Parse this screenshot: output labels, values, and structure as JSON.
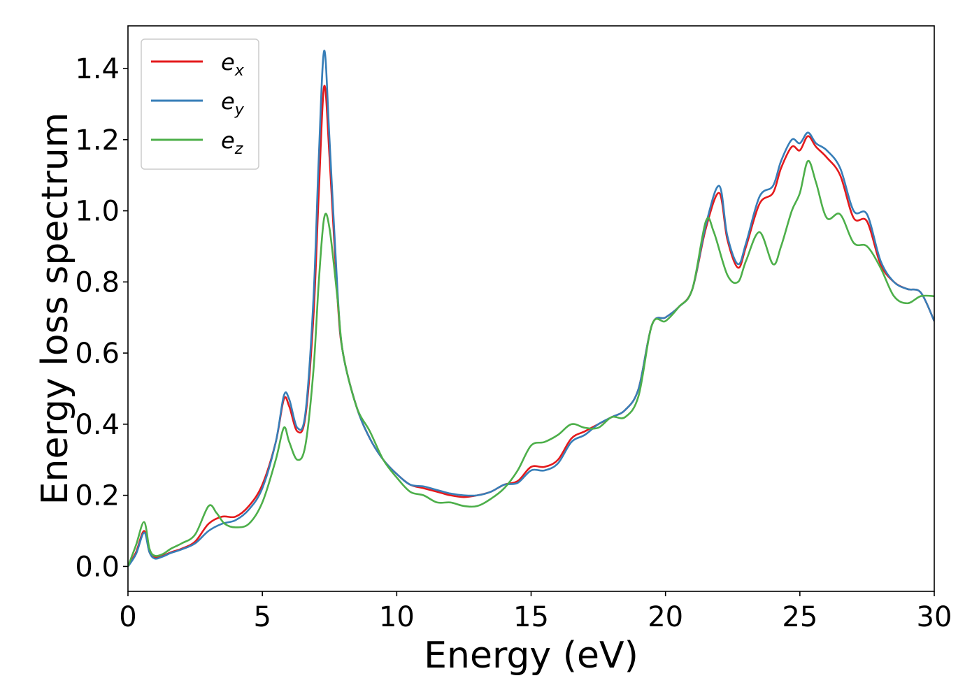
{
  "chart_data": {
    "type": "line",
    "xlabel": "Energy (eV)",
    "ylabel": "Energy loss spectrum",
    "xlim": [
      0,
      30
    ],
    "ylim": [
      -0.07,
      1.52
    ],
    "xticks": [
      0,
      5,
      10,
      15,
      20,
      25,
      30
    ],
    "xtick_labels": [
      "0",
      "5",
      "10",
      "15",
      "20",
      "25",
      "30"
    ],
    "yticks": [
      0.0,
      0.2,
      0.4,
      0.6,
      0.8,
      1.0,
      1.2,
      1.4
    ],
    "ytick_labels": [
      "0.0",
      "0.2",
      "0.4",
      "0.6",
      "0.8",
      "1.0",
      "1.2",
      "1.4"
    ],
    "grid": false,
    "legend_position": "top-left",
    "series": [
      {
        "name": "e_x",
        "label_base": "e",
        "label_sub": "x",
        "color": "#e41a1c",
        "x": [
          0,
          0.3,
          0.6,
          0.8,
          1.0,
          1.3,
          1.6,
          2.0,
          2.5,
          3.0,
          3.5,
          4.0,
          4.5,
          5.0,
          5.5,
          5.8,
          6.0,
          6.3,
          6.6,
          6.9,
          7.1,
          7.3,
          7.5,
          7.8,
          8.0,
          8.5,
          9.0,
          9.5,
          10.0,
          10.5,
          11.0,
          11.5,
          12.0,
          12.5,
          13.0,
          13.5,
          14.0,
          14.5,
          15.0,
          15.5,
          16.0,
          16.5,
          17.0,
          17.5,
          18.0,
          18.5,
          19.0,
          19.5,
          20.0,
          20.5,
          21.0,
          21.5,
          22.0,
          22.3,
          22.7,
          23.0,
          23.5,
          24.0,
          24.3,
          24.7,
          25.0,
          25.3,
          25.6,
          26.0,
          26.5,
          27.0,
          27.5,
          28.0,
          28.5,
          29.0,
          29.5,
          30.0
        ],
        "values": [
          0,
          0.04,
          0.1,
          0.04,
          0.025,
          0.03,
          0.04,
          0.05,
          0.07,
          0.12,
          0.14,
          0.14,
          0.17,
          0.23,
          0.35,
          0.47,
          0.45,
          0.38,
          0.42,
          0.7,
          1.05,
          1.35,
          1.15,
          0.75,
          0.6,
          0.45,
          0.36,
          0.3,
          0.26,
          0.23,
          0.22,
          0.21,
          0.2,
          0.195,
          0.2,
          0.21,
          0.23,
          0.24,
          0.28,
          0.28,
          0.3,
          0.36,
          0.38,
          0.4,
          0.42,
          0.44,
          0.5,
          0.68,
          0.7,
          0.73,
          0.78,
          0.95,
          1.05,
          0.92,
          0.84,
          0.9,
          1.02,
          1.05,
          1.12,
          1.18,
          1.17,
          1.21,
          1.18,
          1.15,
          1.1,
          0.98,
          0.97,
          0.85,
          0.8,
          0.78,
          0.77,
          0.69
        ]
      },
      {
        "name": "e_y",
        "label_base": "e",
        "label_sub": "y",
        "color": "#377eb8",
        "x": [
          0,
          0.3,
          0.6,
          0.8,
          1.0,
          1.3,
          1.6,
          2.0,
          2.5,
          3.0,
          3.5,
          4.0,
          4.5,
          5.0,
          5.5,
          5.8,
          6.0,
          6.3,
          6.6,
          6.9,
          7.1,
          7.3,
          7.5,
          7.8,
          8.0,
          8.5,
          9.0,
          9.5,
          10.0,
          10.5,
          11.0,
          11.5,
          12.0,
          12.5,
          13.0,
          13.5,
          14.0,
          14.5,
          15.0,
          15.5,
          16.0,
          16.5,
          17.0,
          17.5,
          18.0,
          18.5,
          19.0,
          19.5,
          20.0,
          20.5,
          21.0,
          21.5,
          22.0,
          22.3,
          22.7,
          23.0,
          23.5,
          24.0,
          24.3,
          24.7,
          25.0,
          25.3,
          25.6,
          26.0,
          26.5,
          27.0,
          27.5,
          28.0,
          28.5,
          29.0,
          29.5,
          30.0
        ],
        "values": [
          0,
          0.035,
          0.095,
          0.04,
          0.022,
          0.028,
          0.038,
          0.048,
          0.065,
          0.1,
          0.12,
          0.13,
          0.16,
          0.22,
          0.35,
          0.48,
          0.47,
          0.39,
          0.43,
          0.75,
          1.15,
          1.45,
          1.2,
          0.77,
          0.6,
          0.45,
          0.36,
          0.3,
          0.26,
          0.23,
          0.225,
          0.215,
          0.205,
          0.2,
          0.2,
          0.21,
          0.23,
          0.235,
          0.27,
          0.27,
          0.29,
          0.35,
          0.37,
          0.4,
          0.42,
          0.44,
          0.5,
          0.68,
          0.7,
          0.73,
          0.78,
          0.96,
          1.07,
          0.93,
          0.85,
          0.91,
          1.04,
          1.07,
          1.14,
          1.2,
          1.19,
          1.22,
          1.19,
          1.17,
          1.12,
          1.0,
          0.99,
          0.86,
          0.8,
          0.78,
          0.77,
          0.69
        ]
      },
      {
        "name": "e_z",
        "label_base": "e",
        "label_sub": "z",
        "color": "#4daf4a",
        "x": [
          0,
          0.3,
          0.6,
          0.8,
          1.0,
          1.3,
          1.6,
          2.0,
          2.5,
          3.0,
          3.3,
          3.6,
          4.0,
          4.5,
          5.0,
          5.5,
          5.8,
          6.0,
          6.3,
          6.6,
          6.9,
          7.1,
          7.3,
          7.5,
          7.8,
          8.0,
          8.5,
          9.0,
          9.5,
          10.0,
          10.5,
          11.0,
          11.5,
          12.0,
          12.5,
          13.0,
          13.5,
          14.0,
          14.5,
          15.0,
          15.5,
          16.0,
          16.5,
          17.0,
          17.5,
          18.0,
          18.5,
          19.0,
          19.5,
          20.0,
          20.5,
          21.0,
          21.5,
          21.8,
          22.3,
          22.7,
          23.0,
          23.5,
          24.0,
          24.3,
          24.7,
          25.0,
          25.3,
          25.6,
          26.0,
          26.5,
          27.0,
          27.5,
          28.0,
          28.5,
          29.0,
          29.5,
          30.0
        ],
        "values": [
          0,
          0.06,
          0.125,
          0.05,
          0.03,
          0.035,
          0.05,
          0.065,
          0.09,
          0.17,
          0.15,
          0.12,
          0.11,
          0.12,
          0.18,
          0.3,
          0.39,
          0.35,
          0.3,
          0.34,
          0.55,
          0.8,
          0.98,
          0.95,
          0.75,
          0.6,
          0.45,
          0.38,
          0.3,
          0.25,
          0.21,
          0.2,
          0.18,
          0.18,
          0.17,
          0.17,
          0.19,
          0.22,
          0.27,
          0.34,
          0.35,
          0.37,
          0.4,
          0.39,
          0.39,
          0.42,
          0.42,
          0.48,
          0.68,
          0.69,
          0.73,
          0.78,
          0.97,
          0.94,
          0.82,
          0.8,
          0.86,
          0.94,
          0.85,
          0.9,
          1.0,
          1.05,
          1.14,
          1.08,
          0.98,
          0.99,
          0.91,
          0.9,
          0.84,
          0.76,
          0.74,
          0.76,
          0.76
        ]
      }
    ]
  }
}
